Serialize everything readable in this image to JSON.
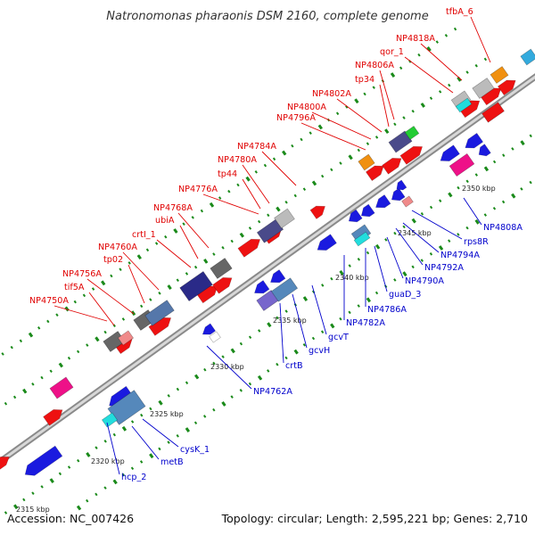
{
  "header": {
    "title": "Natronomonas pharaonis DSM 2160, complete genome"
  },
  "footer": {
    "accession": "Accession: NC_007426",
    "summary": "Topology: circular; Length: 2,595,221 bp; Genes: 2,710"
  },
  "colors": {
    "forward_label": "#e00000",
    "reverse_label": "#0000cc",
    "backbone": "#a8a8a8",
    "tick": "#1a8a1a"
  },
  "ruler": {
    "ticks": [
      {
        "pos_kbp": 2315,
        "label": "2315 kbp"
      },
      {
        "pos_kbp": 2320,
        "label": "2320 kbp"
      },
      {
        "pos_kbp": 2325,
        "label": "2325 kbp"
      },
      {
        "pos_kbp": 2330,
        "label": "2330 kbp"
      },
      {
        "pos_kbp": 2335,
        "label": "2335 kbp"
      },
      {
        "pos_kbp": 2340,
        "label": "2340 kbp"
      },
      {
        "pos_kbp": 2345,
        "label": "2345 kbp"
      },
      {
        "pos_kbp": 2350,
        "label": "2350 kbp"
      }
    ]
  },
  "forward_genes": [
    "NP4750A",
    "tif5A",
    "NP4756A",
    "tp02",
    "NP4760A",
    "crtI_1",
    "ubiA",
    "NP4768A",
    "NP4776A",
    "tp44",
    "NP4780A",
    "NP4784A",
    "NP4796A",
    "NP4800A",
    "NP4802A",
    "tp34",
    "NP4806A",
    "qor_1",
    "NP4818A",
    "tfbA_6"
  ],
  "reverse_genes": [
    "hcp_2",
    "metB",
    "cysK_1",
    "NP4762A",
    "crtB",
    "gcvH",
    "gcvT",
    "NP4782A",
    "NP4786A",
    "guaD_3",
    "NP4790A",
    "NP4792A",
    "NP4794A",
    "rps8R",
    "NP4808A"
  ]
}
